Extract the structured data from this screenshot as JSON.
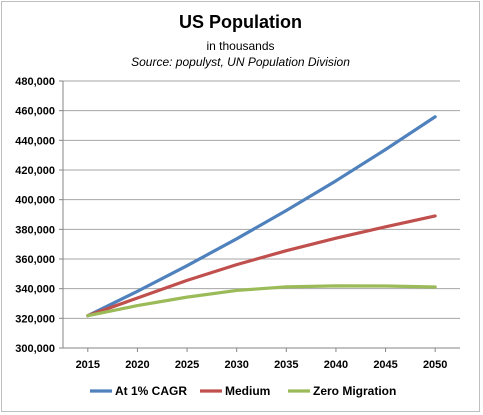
{
  "chart_data": {
    "type": "line",
    "title": "US Population",
    "subtitle": "in thousands",
    "source": "Source: populyst, UN Population Division",
    "xlabel": "",
    "ylabel": "",
    "x": [
      2015,
      2020,
      2025,
      2030,
      2035,
      2040,
      2045,
      2050
    ],
    "ylim": [
      300000,
      480000
    ],
    "yticks": [
      "300,000",
      "320,000",
      "340,000",
      "360,000",
      "380,000",
      "400,000",
      "420,000",
      "440,000",
      "460,000",
      "480,000"
    ],
    "xticks": [
      "2015",
      "2020",
      "2025",
      "2030",
      "2035",
      "2040",
      "2045",
      "2050"
    ],
    "grid": true,
    "legend_position": "bottom",
    "series": [
      {
        "name": "At 1% CAGR",
        "color": "#4f81bd",
        "values": [
          321800,
          338200,
          355500,
          373600,
          392700,
          412700,
          433800,
          455900
        ]
      },
      {
        "name": "Medium",
        "color": "#c0504d",
        "values": [
          321800,
          333700,
          345600,
          356200,
          365600,
          374000,
          381700,
          389000
        ]
      },
      {
        "name": "Zero Migration",
        "color": "#9bbb59",
        "values": [
          321800,
          328600,
          334300,
          338800,
          341200,
          341900,
          341800,
          341100
        ]
      }
    ]
  }
}
